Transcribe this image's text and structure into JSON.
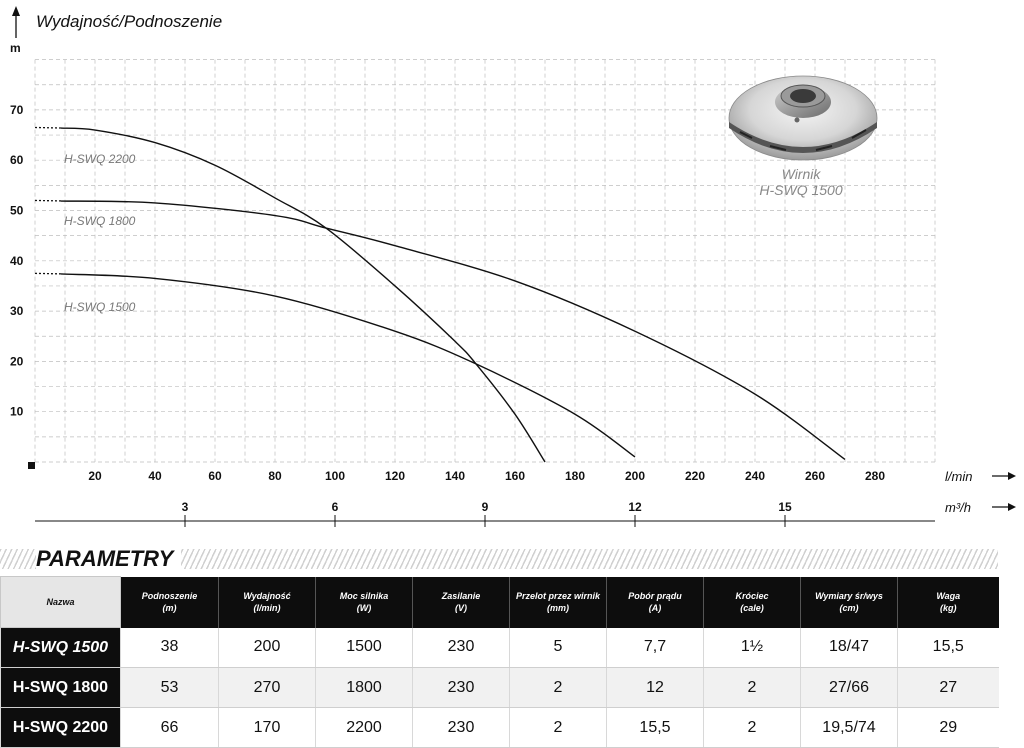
{
  "chart_data": {
    "type": "line",
    "y_title": "Wydajność/Podnoszenie",
    "y_unit": "m",
    "y_ticks": [
      10,
      20,
      30,
      40,
      50,
      60,
      70
    ],
    "ylim": [
      0,
      80
    ],
    "x_unit_lmin": "l/min",
    "x_ticks_lmin": [
      20,
      40,
      60,
      80,
      100,
      120,
      140,
      160,
      180,
      200,
      220,
      240,
      260,
      280
    ],
    "xlim_lmin": [
      0,
      300
    ],
    "x_unit_m3h": "m³/h",
    "x_ticks_m3h": [
      3,
      6,
      9,
      12,
      15
    ],
    "grid": true,
    "series": [
      {
        "name": "H-SWQ 2200",
        "x": [
          0,
          20,
          40,
          60,
          80,
          97,
          120,
          140,
          147,
          160,
          170
        ],
        "y": [
          66.5,
          66,
          63.5,
          59,
          52.5,
          46.5,
          35,
          24,
          19.5,
          9.5,
          0
        ]
      },
      {
        "name": "H-SWQ 1800",
        "x": [
          0,
          40,
          80,
          97,
          120,
          160,
          200,
          240,
          270
        ],
        "y": [
          52,
          51.5,
          49,
          46.5,
          43,
          36,
          26,
          13.5,
          0.5
        ]
      },
      {
        "name": "H-SWQ 1500",
        "x": [
          0,
          40,
          80,
          120,
          147,
          180,
          200
        ],
        "y": [
          37.5,
          36.5,
          33,
          26,
          19.5,
          9.5,
          1
        ]
      }
    ]
  },
  "impeller": {
    "label": "Wirnik",
    "model": "H-SWQ 1500"
  },
  "params": {
    "title": "PARAMETRY",
    "headers": [
      [
        "Nazwa",
        ""
      ],
      [
        "Podnoszenie",
        "(m)"
      ],
      [
        "Wydajność",
        "(l/min)"
      ],
      [
        "Moc silnika",
        "(W)"
      ],
      [
        "Zasilanie",
        "(V)"
      ],
      [
        "Przelot przez wirnik",
        "(mm)"
      ],
      [
        "Pobór prądu",
        "(A)"
      ],
      [
        "Króciec",
        "(cale)"
      ],
      [
        "Wymiary śr/wys",
        "(cm)"
      ],
      [
        "Waga",
        "(kg)"
      ]
    ],
    "rows": [
      [
        "H-SWQ 1500",
        "38",
        "200",
        "1500",
        "230",
        "5",
        "7,7",
        "1½",
        "18/47",
        "15,5"
      ],
      [
        "H-SWQ 1800",
        "53",
        "270",
        "1800",
        "230",
        "2",
        "12",
        "2",
        "27/66",
        "27"
      ],
      [
        "H-SWQ 2200",
        "66",
        "170",
        "2200",
        "230",
        "2",
        "15,5",
        "2",
        "19,5/74",
        "29"
      ]
    ]
  }
}
